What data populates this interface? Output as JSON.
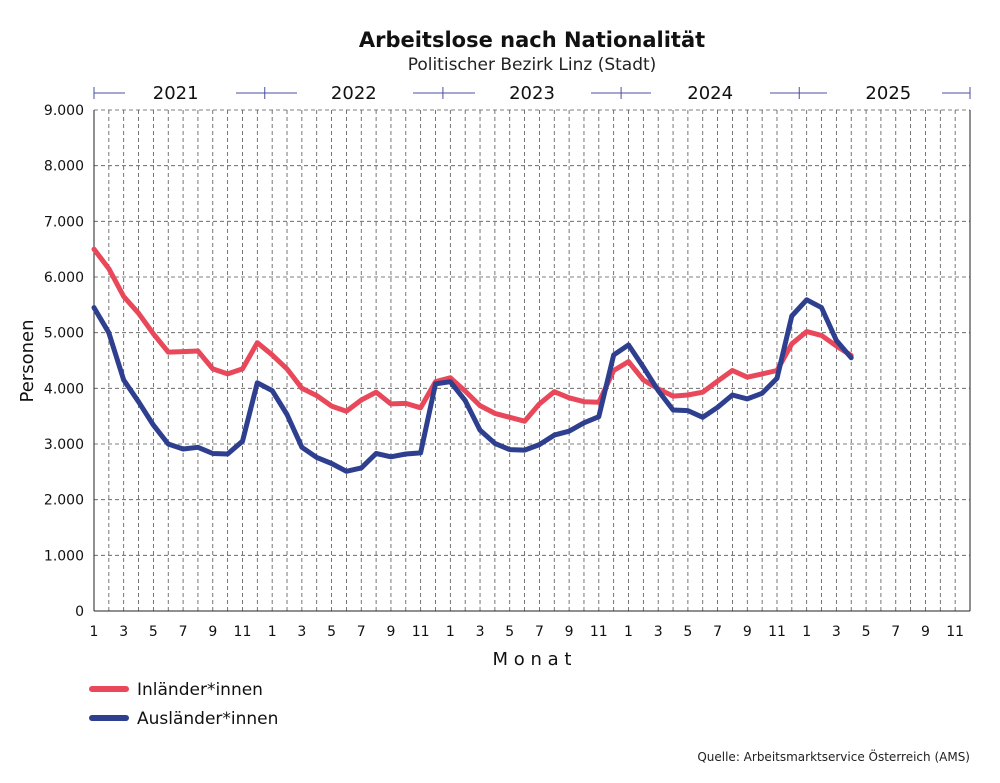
{
  "chart_data": {
    "type": "line",
    "title": "Arbeitslose nach Nationalität",
    "subtitle": "Politischer Bezirk Linz (Stadt)",
    "xlabel": "M o n a t",
    "ylabel": "Personen",
    "source": "Quelle: Arbeitsmarktservice Österreich (AMS)",
    "years": [
      "2021",
      "2022",
      "2023",
      "2024",
      "2025"
    ],
    "x_tick_labels": [
      "1",
      "3",
      "5",
      "7",
      "9",
      "11",
      "1",
      "3",
      "5",
      "7",
      "9",
      "11",
      "1",
      "3",
      "5",
      "7",
      "9",
      "11",
      "1",
      "3",
      "5",
      "7",
      "9",
      "11",
      "1",
      "3",
      "5",
      "7",
      "9",
      "11"
    ],
    "y_tick_labels": [
      "0",
      "1.000",
      "2.000",
      "3.000",
      "4.000",
      "5.000",
      "6.000",
      "7.000",
      "8.000",
      "9.000"
    ],
    "ylim": [
      0,
      9000
    ],
    "x_months": [
      "2021-01",
      "2021-02",
      "2021-03",
      "2021-04",
      "2021-05",
      "2021-06",
      "2021-07",
      "2021-08",
      "2021-09",
      "2021-10",
      "2021-11",
      "2021-12",
      "2022-01",
      "2022-02",
      "2022-03",
      "2022-04",
      "2022-05",
      "2022-06",
      "2022-07",
      "2022-08",
      "2022-09",
      "2022-10",
      "2022-11",
      "2022-12",
      "2023-01",
      "2023-02",
      "2023-03",
      "2023-04",
      "2023-05",
      "2023-06",
      "2023-07",
      "2023-08",
      "2023-09",
      "2023-10",
      "2023-11",
      "2023-12",
      "2024-01",
      "2024-02",
      "2024-03",
      "2024-04",
      "2024-05",
      "2024-06",
      "2024-07",
      "2024-08",
      "2024-09",
      "2024-10",
      "2024-11",
      "2024-12",
      "2025-01",
      "2025-02",
      "2025-03",
      "2025-04"
    ],
    "x_range": [
      "2021-01",
      "2025-12"
    ],
    "grid": true,
    "legend_position": "bottom-left",
    "series": [
      {
        "name": "Inländer*innen",
        "color": "#e8485a",
        "values": [
          6500,
          6150,
          5650,
          5350,
          4980,
          4650,
          4660,
          4670,
          4350,
          4260,
          4350,
          4820,
          4600,
          4350,
          4000,
          3870,
          3680,
          3590,
          3790,
          3930,
          3720,
          3730,
          3650,
          4120,
          4190,
          3950,
          3690,
          3550,
          3480,
          3410,
          3720,
          3940,
          3830,
          3760,
          3750,
          4320,
          4480,
          4150,
          3990,
          3860,
          3880,
          3930,
          4130,
          4320,
          4200,
          4260,
          4320,
          4800,
          5020,
          4950,
          4760,
          4590
        ]
      },
      {
        "name": "Ausländer*innen",
        "color": "#2f3f8f",
        "values": [
          5450,
          5000,
          4150,
          3760,
          3340,
          3000,
          2910,
          2940,
          2830,
          2820,
          3050,
          4100,
          3960,
          3530,
          2940,
          2760,
          2650,
          2510,
          2570,
          2830,
          2770,
          2820,
          2840,
          4080,
          4120,
          3780,
          3250,
          3010,
          2900,
          2890,
          2990,
          3160,
          3230,
          3380,
          3490,
          4600,
          4780,
          4380,
          3960,
          3610,
          3600,
          3480,
          3660,
          3880,
          3810,
          3910,
          4180,
          5300,
          5590,
          5450,
          4860,
          4550
        ]
      }
    ]
  }
}
